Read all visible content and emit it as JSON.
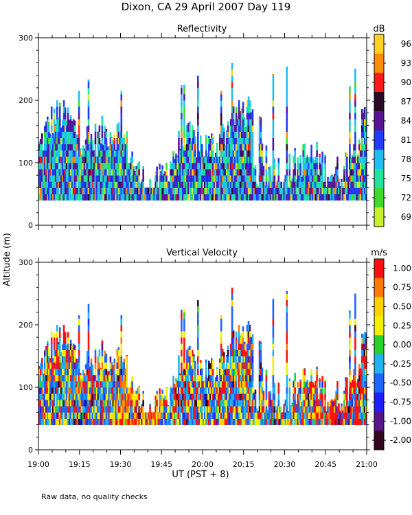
{
  "chart_data": {
    "type": "heatmap",
    "title": "Dixon, CA 29 April 2007  Day 119",
    "ylabel": "Altitude (m)",
    "xlabel": "UT  (PST + 8)",
    "footnote": "Raw data, no quality checks",
    "x_ticks": [
      "19:00",
      "19:15",
      "19:30",
      "19:45",
      "20:00",
      "20:15",
      "20:30",
      "20:45",
      "21:00"
    ],
    "xlim_minutes": [
      0,
      120
    ],
    "y_ticks": [
      0,
      100,
      200,
      300
    ],
    "ylim": [
      0,
      300
    ],
    "data_floor_m": 40,
    "panels": [
      {
        "title": "Reflectivity",
        "units": "dB",
        "colorbar_ticks": [
          "96",
          "93",
          "90",
          "87",
          "84",
          "81",
          "78",
          "75",
          "72",
          "69"
        ],
        "colorbar_colors": [
          "#ffd21e",
          "#ff8c00",
          "#ff1a1a",
          "#2a0a28",
          "#5a1498",
          "#1f3cff",
          "#1ebef5",
          "#1ee6a0",
          "#3cdc28",
          "#c8f028"
        ],
        "dominant_levels": [
          "78",
          "75",
          "81",
          "84"
        ]
      },
      {
        "title": "Vertical Velocity",
        "units": "m/s",
        "colorbar_ticks": [
          "1.00",
          "0.75",
          "0.50",
          "0.25",
          "0.00",
          "-0.25",
          "-0.50",
          "-0.75",
          "-1.00",
          "-2.00"
        ],
        "colorbar_colors": [
          "#ff1010",
          "#ff7a00",
          "#ffd200",
          "#f0f000",
          "#28d228",
          "#1eb4f0",
          "#1e64ff",
          "#1e1eff",
          "#5a148c",
          "#32081e"
        ],
        "dominant_levels": [
          "-0.50",
          "-0.25",
          "0.25",
          "1.00"
        ]
      }
    ]
  }
}
